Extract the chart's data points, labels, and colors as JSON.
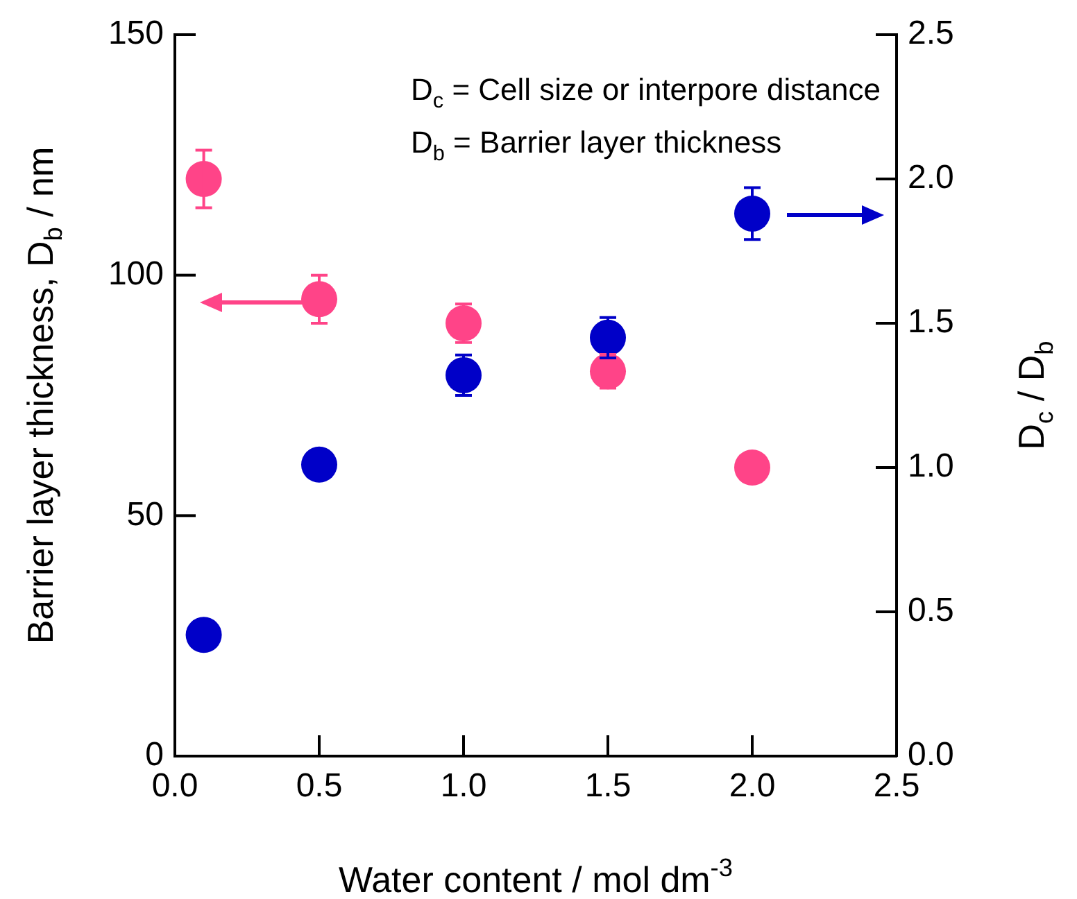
{
  "chart_data": {
    "type": "scatter",
    "xlabel": "Water content / mol dm$^{-3}$",
    "ylabel": "Barrier layer thickness, D$_{b}$ / nm",
    "y2label": "D$_{c}$ / D$_{b}$",
    "annotations": [
      "D$_{c}$ = Cell size or interpore distance",
      "D$_{b}$ = Barrier layer thickness"
    ],
    "x": [
      0.1,
      0.5,
      1.0,
      1.5,
      2.0
    ],
    "series": [
      {
        "color": "#ff4488",
        "values": [
          120,
          95,
          90,
          80,
          60
        ],
        "errors": [
          6,
          5,
          4,
          3.5,
          null
        ]
      },
      {
        "color": "#0000c8",
        "axis": "y2",
        "values": [
          0.42,
          1.01,
          1.32,
          1.45,
          1.88
        ],
        "errors": [
          null,
          null,
          0.07,
          0.07,
          0.09
        ]
      }
    ],
    "xlim": [
      0,
      2.5
    ],
    "xticks": [
      {
        "value": 0,
        "label": "0.0"
      },
      {
        "value": 0.5,
        "label": "0.5"
      },
      {
        "value": 1,
        "label": "1.0"
      },
      {
        "value": 1.5,
        "label": "1.5"
      },
      {
        "value": 2,
        "label": "2.0"
      },
      {
        "value": 2.5,
        "label": "2.5"
      }
    ],
    "ylim": [
      0,
      150
    ],
    "yticks": [
      0,
      50,
      100,
      150
    ],
    "y2lim": [
      0,
      2.5
    ],
    "y2ticks": [
      {
        "value": 0,
        "label": "0.0"
      },
      {
        "value": 0.5,
        "label": "0.5"
      },
      {
        "value": 1,
        "label": "1.0"
      },
      {
        "value": 1.5,
        "label": "1.5"
      },
      {
        "value": 2,
        "label": "2.0"
      },
      {
        "value": 2.5,
        "label": "2.5"
      }
    ],
    "marker": "circle",
    "grid": false,
    "legend": false
  }
}
